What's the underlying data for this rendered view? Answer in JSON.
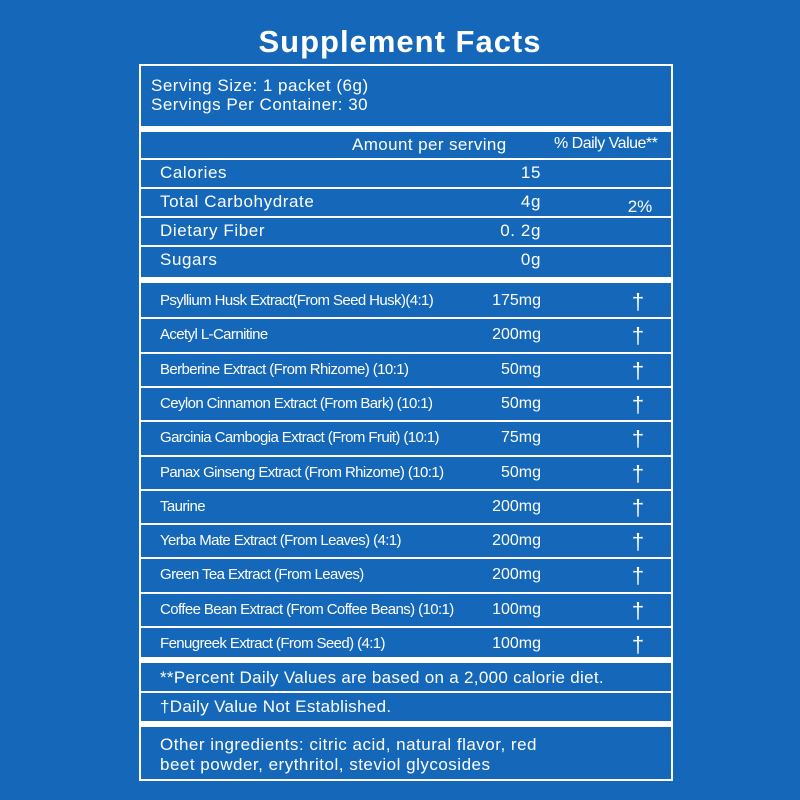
{
  "header": {
    "title": "Supplement Facts"
  },
  "serving": [
    "Serving Size: 1 packet (6g)",
    "Servings Per Container: 30"
  ],
  "columns": {
    "amount": "Amount per serving",
    "daily_value": "% Daily Value**"
  },
  "nutrients": [
    {
      "name": "Calories",
      "amount": "15"
    },
    {
      "name": "Total Carbohydrate",
      "amount": "4g",
      "daily_value": "2%"
    },
    {
      "name": "Dietary Fiber",
      "amount": "0. 2g"
    },
    {
      "name": "Sugars",
      "amount": "0g"
    }
  ],
  "ingredients": [
    {
      "name": "Psyllium Husk Extract(From Seed Husk)(4:1)",
      "amount": "175mg",
      "daily_value": "†"
    },
    {
      "name": "Acetyl L-Carnitine",
      "amount": "200mg",
      "daily_value": "†"
    },
    {
      "name": "Berberine Extract (From Rhizome) (10:1)",
      "amount": "50mg",
      "daily_value": "†"
    },
    {
      "name": "Ceylon Cinnamon Extract (From Bark) (10:1)",
      "amount": "50mg",
      "daily_value": "†"
    },
    {
      "name": "Garcinia Cambogia Extract (From Fruit) (10:1)",
      "amount": "75mg",
      "daily_value": "†"
    },
    {
      "name": "Panax Ginseng Extract (From Rhizome) (10:1)",
      "amount": "50mg",
      "daily_value": "†"
    },
    {
      "name": "Taurine",
      "amount": "200mg",
      "daily_value": "†"
    },
    {
      "name": "Yerba Mate Extract (From Leaves) (4:1)",
      "amount": "200mg",
      "daily_value": "†"
    },
    {
      "name": "Green Tea Extract (From Leaves)",
      "amount": "200mg",
      "daily_value": "†"
    },
    {
      "name": "Coffee Bean Extract (From Coffee Beans) (10:1)",
      "amount": "100mg",
      "daily_value": "†"
    },
    {
      "name": "Fenugreek Extract (From Seed) (4:1)",
      "amount": "100mg",
      "daily_value": "†"
    }
  ],
  "footnotes": [
    "**Percent Daily Values are based on a 2,000 calorie diet.",
    "†Daily Value Not Established."
  ],
  "other_ingredients": [
    "Other ingredients: citric acid, natural flavor, red",
    "beet powder, erythritol, steviol glycosides"
  ]
}
